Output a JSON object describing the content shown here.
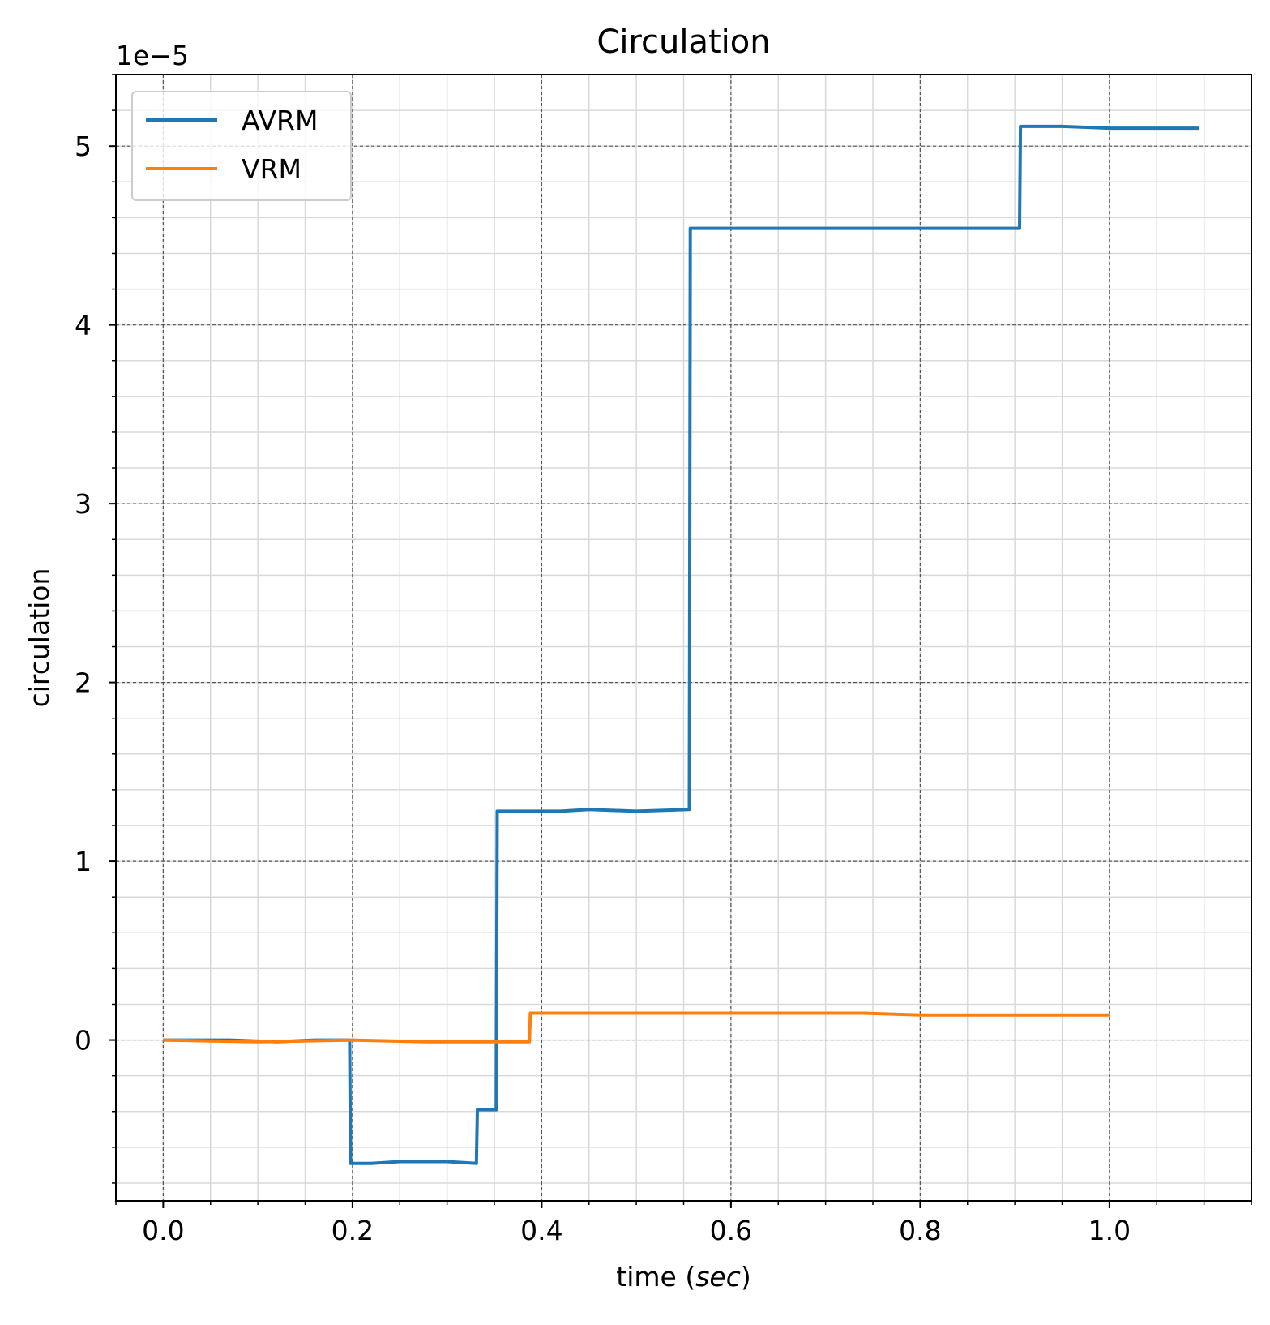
{
  "chart_data": {
    "type": "line",
    "title": "Circulation",
    "xlabel_main": "time (",
    "xlabel_italic": "sec",
    "xlabel_end": ")",
    "ylabel": "circulation",
    "y_offset_text": "1e−5",
    "xlim": [
      -0.05,
      1.15
    ],
    "ylim": [
      -0.9,
      5.4
    ],
    "x_ticks": [
      0.0,
      0.2,
      0.4,
      0.6,
      0.8,
      1.0
    ],
    "x_tick_labels": [
      "0.0",
      "0.2",
      "0.4",
      "0.6",
      "0.8",
      "1.0"
    ],
    "y_ticks": [
      0,
      1,
      2,
      3,
      4,
      5
    ],
    "y_tick_labels": [
      "0",
      "1",
      "2",
      "3",
      "4",
      "5"
    ],
    "grid_major": true,
    "grid_minor": true,
    "legend_position": "top-left",
    "series": [
      {
        "name": "AVRM",
        "color": "#1f77b4",
        "x": [
          0.0,
          0.07,
          0.12,
          0.16,
          0.197,
          0.198,
          0.22,
          0.25,
          0.3,
          0.331,
          0.332,
          0.352,
          0.353,
          0.354,
          0.37,
          0.42,
          0.45,
          0.5,
          0.556,
          0.557,
          0.6,
          0.7,
          0.8,
          0.905,
          0.906,
          0.95,
          1.0,
          1.095
        ],
        "y": [
          0.0,
          0.0,
          -0.01,
          0.0,
          0.0,
          -0.69,
          -0.69,
          -0.68,
          -0.68,
          -0.69,
          -0.39,
          -0.39,
          1.28,
          1.28,
          1.28,
          1.28,
          1.29,
          1.28,
          1.29,
          4.54,
          4.54,
          4.54,
          4.54,
          4.54,
          5.11,
          5.11,
          5.1,
          5.1
        ]
      },
      {
        "name": "VRM",
        "color": "#ff7f0e",
        "x": [
          0.0,
          0.1,
          0.2,
          0.28,
          0.36,
          0.387,
          0.388,
          0.45,
          0.6,
          0.74,
          0.8,
          0.9,
          1.0
        ],
        "y": [
          0.0,
          -0.01,
          0.0,
          -0.01,
          -0.01,
          -0.01,
          0.15,
          0.15,
          0.15,
          0.15,
          0.14,
          0.14,
          0.14
        ]
      }
    ]
  }
}
